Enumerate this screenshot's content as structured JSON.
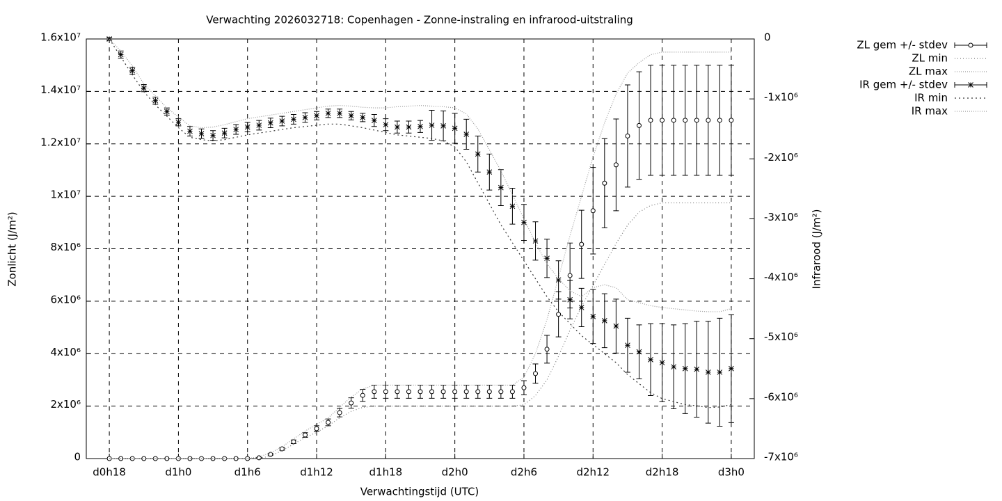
{
  "chart_data": {
    "type": "errorbar",
    "title": "Verwachting 2026032718: Copenhagen - Zonne-instraling en infrarood-uitstraling",
    "x_label": "Verwachtingstijd (UTC)",
    "y_label": "Zonlicht (J/m²)",
    "y2_label": "Infrarood (J/m²)",
    "grid": true,
    "legend": "outside-top-right",
    "xlim": [
      16,
      74
    ],
    "xticks": [
      {
        "value": 18,
        "label": "d0h18"
      },
      {
        "value": 24,
        "label": "d1h0"
      },
      {
        "value": 30,
        "label": "d1h6"
      },
      {
        "value": 36,
        "label": "d1h12"
      },
      {
        "value": 42,
        "label": "d1h18"
      },
      {
        "value": 48,
        "label": "d2h0"
      },
      {
        "value": 54,
        "label": "d2h6"
      },
      {
        "value": 60,
        "label": "d2h12"
      },
      {
        "value": 66,
        "label": "d2h18"
      },
      {
        "value": 72,
        "label": "d3h0"
      }
    ],
    "ylim": [
      0,
      16000000
    ],
    "yticks": [
      0,
      {
        "value": 2000000,
        "label": "2x10⁶"
      },
      {
        "value": 4000000,
        "label": "4x10⁶"
      },
      {
        "value": 6000000,
        "label": "6x10⁶"
      },
      {
        "value": 8000000,
        "label": "8x10⁶"
      },
      {
        "value": 10000000,
        "label": "1x10⁷"
      },
      {
        "value": 12000000,
        "label": "1.2x10⁷"
      },
      {
        "value": 14000000,
        "label": "1.4x10⁷"
      },
      {
        "value": 16000000,
        "label": "1.6x10⁷"
      }
    ],
    "y2lim": [
      -7000000,
      0
    ],
    "y2ticks": [
      0,
      {
        "value": -1000000,
        "label": "-1x10⁶"
      },
      {
        "value": -2000000,
        "label": "-2x10⁶"
      },
      {
        "value": -3000000,
        "label": "-3x10⁶"
      },
      {
        "value": -4000000,
        "label": "-4x10⁶"
      },
      {
        "value": -5000000,
        "label": "-5x10⁶"
      },
      {
        "value": -6000000,
        "label": "-6x10⁶"
      },
      {
        "value": -7000000,
        "label": "-7x10⁶"
      }
    ],
    "x": [
      18,
      19,
      20,
      21,
      22,
      23,
      24,
      25,
      26,
      27,
      28,
      29,
      30,
      31,
      32,
      33,
      34,
      35,
      36,
      37,
      38,
      39,
      40,
      41,
      42,
      43,
      44,
      45,
      46,
      47,
      48,
      49,
      50,
      51,
      52,
      53,
      54,
      55,
      56,
      57,
      58,
      59,
      60,
      61,
      62,
      63,
      64,
      65,
      66,
      67,
      68,
      69,
      70,
      71,
      72
    ],
    "series": [
      {
        "name": "ZL gem +/- stdev",
        "style": "errorbars",
        "marker": "circle",
        "color": "#000000",
        "values": [
          0,
          0,
          0,
          0,
          0,
          0,
          0,
          0,
          0,
          0,
          0,
          0,
          0,
          30000,
          160000,
          370000,
          640000,
          900000,
          1140000,
          1380000,
          1750000,
          2120000,
          2410000,
          2550000,
          2550000,
          2550000,
          2550000,
          2550000,
          2550000,
          2550000,
          2550000,
          2550000,
          2550000,
          2550000,
          2550000,
          2550000,
          2700000,
          3240000,
          4170000,
          5500000,
          6980000,
          8170000,
          9450000,
          10500000,
          11200000,
          12300000,
          12700000,
          12900000,
          12900000,
          12900000,
          12900000,
          12900000,
          12900000,
          12900000,
          12900000
        ],
        "errors": [
          0,
          0,
          0,
          0,
          0,
          0,
          0,
          0,
          0,
          0,
          0,
          0,
          0,
          10000,
          30000,
          50000,
          70000,
          90000,
          110000,
          130000,
          160000,
          200000,
          230000,
          250000,
          250000,
          250000,
          250000,
          250000,
          250000,
          250000,
          250000,
          250000,
          250000,
          250000,
          250000,
          250000,
          270000,
          370000,
          530000,
          860000,
          1240000,
          1300000,
          1650000,
          1700000,
          1750000,
          1950000,
          2050000,
          2100000,
          2100000,
          2100000,
          2100000,
          2100000,
          2100000,
          2100000,
          2100000
        ]
      },
      {
        "name": "ZL min",
        "style": "line",
        "dash": "1,3",
        "color": "#777777",
        "values": [
          0,
          0,
          0,
          0,
          0,
          0,
          0,
          0,
          0,
          0,
          0,
          0,
          0,
          0,
          100000,
          300000,
          550000,
          800000,
          1000000,
          1250000,
          1550000,
          1800000,
          1950000,
          2000000,
          2000000,
          2000000,
          2000000,
          2000000,
          2000000,
          2000000,
          2000000,
          2000000,
          2000000,
          2000000,
          2000000,
          2000000,
          2050000,
          2400000,
          3000000,
          3900000,
          4900000,
          5800000,
          6600000,
          7400000,
          8200000,
          8900000,
          9400000,
          9650000,
          9750000,
          9750000,
          9750000,
          9750000,
          9750000,
          9750000,
          9750000
        ]
      },
      {
        "name": "ZL max",
        "style": "line",
        "dash": "1,2",
        "color": "#999999",
        "values": [
          0,
          0,
          0,
          0,
          0,
          0,
          0,
          0,
          0,
          0,
          0,
          0,
          0,
          60000,
          220000,
          450000,
          750000,
          1050000,
          1300000,
          1550000,
          1950000,
          2350000,
          2650000,
          2800000,
          2800000,
          2800000,
          2800000,
          2800000,
          2800000,
          2800000,
          2800000,
          2800000,
          2800000,
          2800000,
          2800000,
          2800000,
          3100000,
          4000000,
          5300000,
          6900000,
          8500000,
          10000000,
          11500000,
          12800000,
          13900000,
          14700000,
          15100000,
          15400000,
          15500000,
          15500000,
          15500000,
          15500000,
          15500000,
          15500000,
          15500000
        ]
      },
      {
        "name": "IR gem +/- stdev",
        "style": "errorbars",
        "marker": "star",
        "axis": "y2",
        "color": "#000000",
        "values": [
          0,
          -260000,
          -530000,
          -820000,
          -1030000,
          -1210000,
          -1390000,
          -1540000,
          -1580000,
          -1610000,
          -1570000,
          -1510000,
          -1470000,
          -1440000,
          -1400000,
          -1370000,
          -1340000,
          -1310000,
          -1280000,
          -1240000,
          -1240000,
          -1280000,
          -1310000,
          -1360000,
          -1430000,
          -1470000,
          -1470000,
          -1460000,
          -1440000,
          -1450000,
          -1490000,
          -1590000,
          -1920000,
          -2220000,
          -2480000,
          -2790000,
          -3060000,
          -3370000,
          -3660000,
          -4020000,
          -4350000,
          -4480000,
          -4630000,
          -4700000,
          -4790000,
          -5110000,
          -5220000,
          -5350000,
          -5400000,
          -5470000,
          -5500000,
          -5510000,
          -5560000,
          -5560000,
          -5500000
        ],
        "errors": [
          20000,
          60000,
          60000,
          60000,
          60000,
          60000,
          60000,
          80000,
          80000,
          80000,
          80000,
          80000,
          80000,
          80000,
          80000,
          80000,
          80000,
          80000,
          70000,
          70000,
          70000,
          70000,
          70000,
          100000,
          100000,
          100000,
          100000,
          100000,
          250000,
          250000,
          250000,
          250000,
          300000,
          300000,
          300000,
          300000,
          300000,
          320000,
          320000,
          320000,
          320000,
          320000,
          450000,
          450000,
          450000,
          450000,
          450000,
          600000,
          650000,
          700000,
          750000,
          800000,
          850000,
          900000,
          900000
        ]
      },
      {
        "name": "IR min",
        "style": "line",
        "dash": "2,4",
        "axis": "y2",
        "color": "#333333",
        "values": [
          0,
          -300000,
          -600000,
          -880000,
          -1100000,
          -1290000,
          -1480000,
          -1640000,
          -1680000,
          -1700000,
          -1680000,
          -1640000,
          -1600000,
          -1570000,
          -1540000,
          -1510000,
          -1480000,
          -1460000,
          -1440000,
          -1420000,
          -1420000,
          -1450000,
          -1480000,
          -1520000,
          -1560000,
          -1600000,
          -1620000,
          -1640000,
          -1660000,
          -1700000,
          -1800000,
          -2050000,
          -2400000,
          -2750000,
          -3100000,
          -3400000,
          -3700000,
          -4000000,
          -4300000,
          -4550000,
          -4750000,
          -4950000,
          -5100000,
          -5250000,
          -5400000,
          -5600000,
          -5750000,
          -5900000,
          -6000000,
          -6050000,
          -6100000,
          -6120000,
          -6150000,
          -6140000,
          -6100000
        ]
      },
      {
        "name": "IR max",
        "style": "line",
        "dash": "1,2",
        "axis": "y2",
        "color": "#999999",
        "values": [
          0,
          -200000,
          -450000,
          -750000,
          -950000,
          -1150000,
          -1300000,
          -1450000,
          -1480000,
          -1470000,
          -1430000,
          -1380000,
          -1330000,
          -1300000,
          -1270000,
          -1240000,
          -1210000,
          -1180000,
          -1150000,
          -1120000,
          -1110000,
          -1120000,
          -1140000,
          -1150000,
          -1150000,
          -1130000,
          -1120000,
          -1110000,
          -1120000,
          -1130000,
          -1150000,
          -1250000,
          -1500000,
          -1850000,
          -2200000,
          -2600000,
          -3000000,
          -3400000,
          -3750000,
          -4000000,
          -4200000,
          -4300000,
          -4150000,
          -4100000,
          -4150000,
          -4350000,
          -4400000,
          -4450000,
          -4480000,
          -4500000,
          -4520000,
          -4540000,
          -4550000,
          -4550000,
          -4500000
        ]
      }
    ]
  }
}
